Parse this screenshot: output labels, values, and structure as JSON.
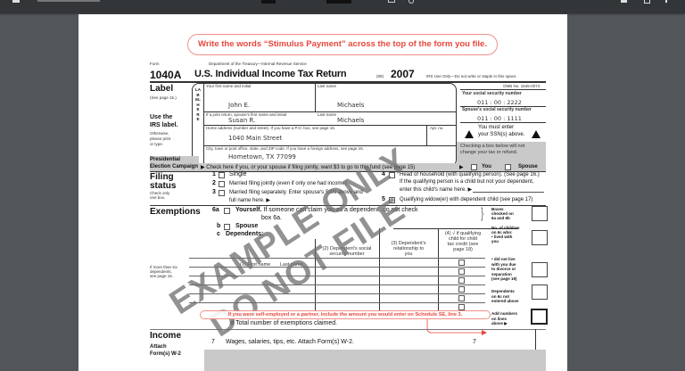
{
  "viewer": {
    "background": "#525659",
    "toolbar_color": "#323639"
  },
  "notice": {
    "top": "Write the words “Stimulus Payment” across the top of the form you file.",
    "se": "If you were self-employed or a partner, include the amount you would enter on Schedule SE, line 3.",
    "color": "#e8473c"
  },
  "header": {
    "form_word": "Form",
    "form_number": "1040A",
    "department": "Department of the Treasury—Internal Revenue Service",
    "title": "U.S. Individual Income Tax Return",
    "code": "(99)",
    "year": "2007",
    "irs_use": "IRS Use Only—Do not write or staple in this space.",
    "omb": "OMB No. 1545-0074"
  },
  "label": {
    "title": "Label",
    "see": "(See page 15.)",
    "use1": "Use the",
    "use2": "IRS label.",
    "other1": "Otherwise,",
    "other2": "please print",
    "other3": "or type.",
    "vertical": "LABEL HERE",
    "first_name_label": "Your first name and initial",
    "last_name_label": "Last name",
    "first_name": "John E.",
    "last_name": "Michaels",
    "spouse_first_label": "If a joint return, spouse's first name and initial",
    "spouse_last_label": "Last name",
    "spouse_first": "Susan R.",
    "spouse_last": "Michaels",
    "address_label": "Home address (number and street). If you have a P.O. box, see page 15.",
    "apt_label": "Apt. no.",
    "address": "1040 Main Street",
    "city_label": "City, town or post office, state, and ZIP code. If you have a foreign address, see page 15.",
    "city": "Hometown, TX 77099",
    "ssn_label": "Your social security number",
    "ssn": [
      "011",
      "00",
      "2222"
    ],
    "spouse_ssn_label": "Spouse's social security number",
    "spouse_ssn": [
      "011",
      "00",
      "1111"
    ],
    "must1": "You must enter",
    "must2": "your SSN(s) above."
  },
  "election": {
    "title1": "Presidential",
    "title2": "Election Campaign",
    "text": "▶ Check here if you, or your spouse if filing jointly, want $3 to go to this fund (see page 15)",
    "note1": "Checking a box below will not",
    "note2": "change your tax or refund.",
    "you": "You",
    "spouse": "Spouse"
  },
  "filing": {
    "title1": "Filing",
    "title2": "status",
    "sub1": "Check only",
    "sub2": "one box.",
    "opts": [
      {
        "n": "1",
        "t": "Single"
      },
      {
        "n": "2",
        "t": "Married filing jointly (even if only one had income)"
      },
      {
        "n": "3",
        "t": "Married filing separately. Enter spouse's SSN above and",
        "t2": "full name here. ▶"
      },
      {
        "n": "4",
        "t": "Head of household (with qualifying person). (See page 16.)",
        "t2": "If the qualifying person is a child but not your dependent,",
        "t3": "enter this child's name here. ▶"
      },
      {
        "n": "5",
        "t": "Qualifying widow(er) with dependent child (see page 17)"
      }
    ]
  },
  "exemptions": {
    "title": "Exemptions",
    "l6a": "6a",
    "yourself": "Yourself.",
    "yourself_rest": "If someone can claim you as a dependent, do not check",
    "box6a": "box 6a.",
    "lb": "b",
    "spouse": "Spouse",
    "lc": "c",
    "dependents": "Dependents:",
    "col1": "(1) First name",
    "col1b": "Last name",
    "col2a": "(2) Dependent's social",
    "col2b": "security number",
    "col3a": "(3) Dependent's",
    "col3b": "relationship to",
    "col3c": "you",
    "col4a": "(4) √ if qualifying",
    "col4b": "child for child",
    "col4c": "tax credit (see",
    "col4d": "page 18)",
    "more1": "If more than six",
    "more2": "dependents,",
    "more3": "see page 16.",
    "ld": "d",
    "total": "Total number of exemptions claimed.",
    "side": [
      [
        "Boxes",
        "checked on",
        "6a and 6b"
      ],
      [
        "No. of children",
        "on 6c who:",
        "• lived with",
        "you"
      ],
      [
        "• did not live",
        "with you due",
        "to divorce or",
        "separation",
        "(see page 19)"
      ],
      [
        "Dependents",
        "on 6c not",
        "entered above"
      ],
      [
        "Add numbers",
        "on lines",
        "above ▶"
      ]
    ]
  },
  "income": {
    "title": "Income",
    "attach1": "Attach",
    "attach2": "Form(s) W-2",
    "l7": "7",
    "t7": "Wages, salaries, tips, etc. Attach Form(s) W-2.",
    "box7": "7"
  },
  "watermark": {
    "line1": "EXAMPLE ONLY",
    "line2": "DO NOT FILE"
  }
}
